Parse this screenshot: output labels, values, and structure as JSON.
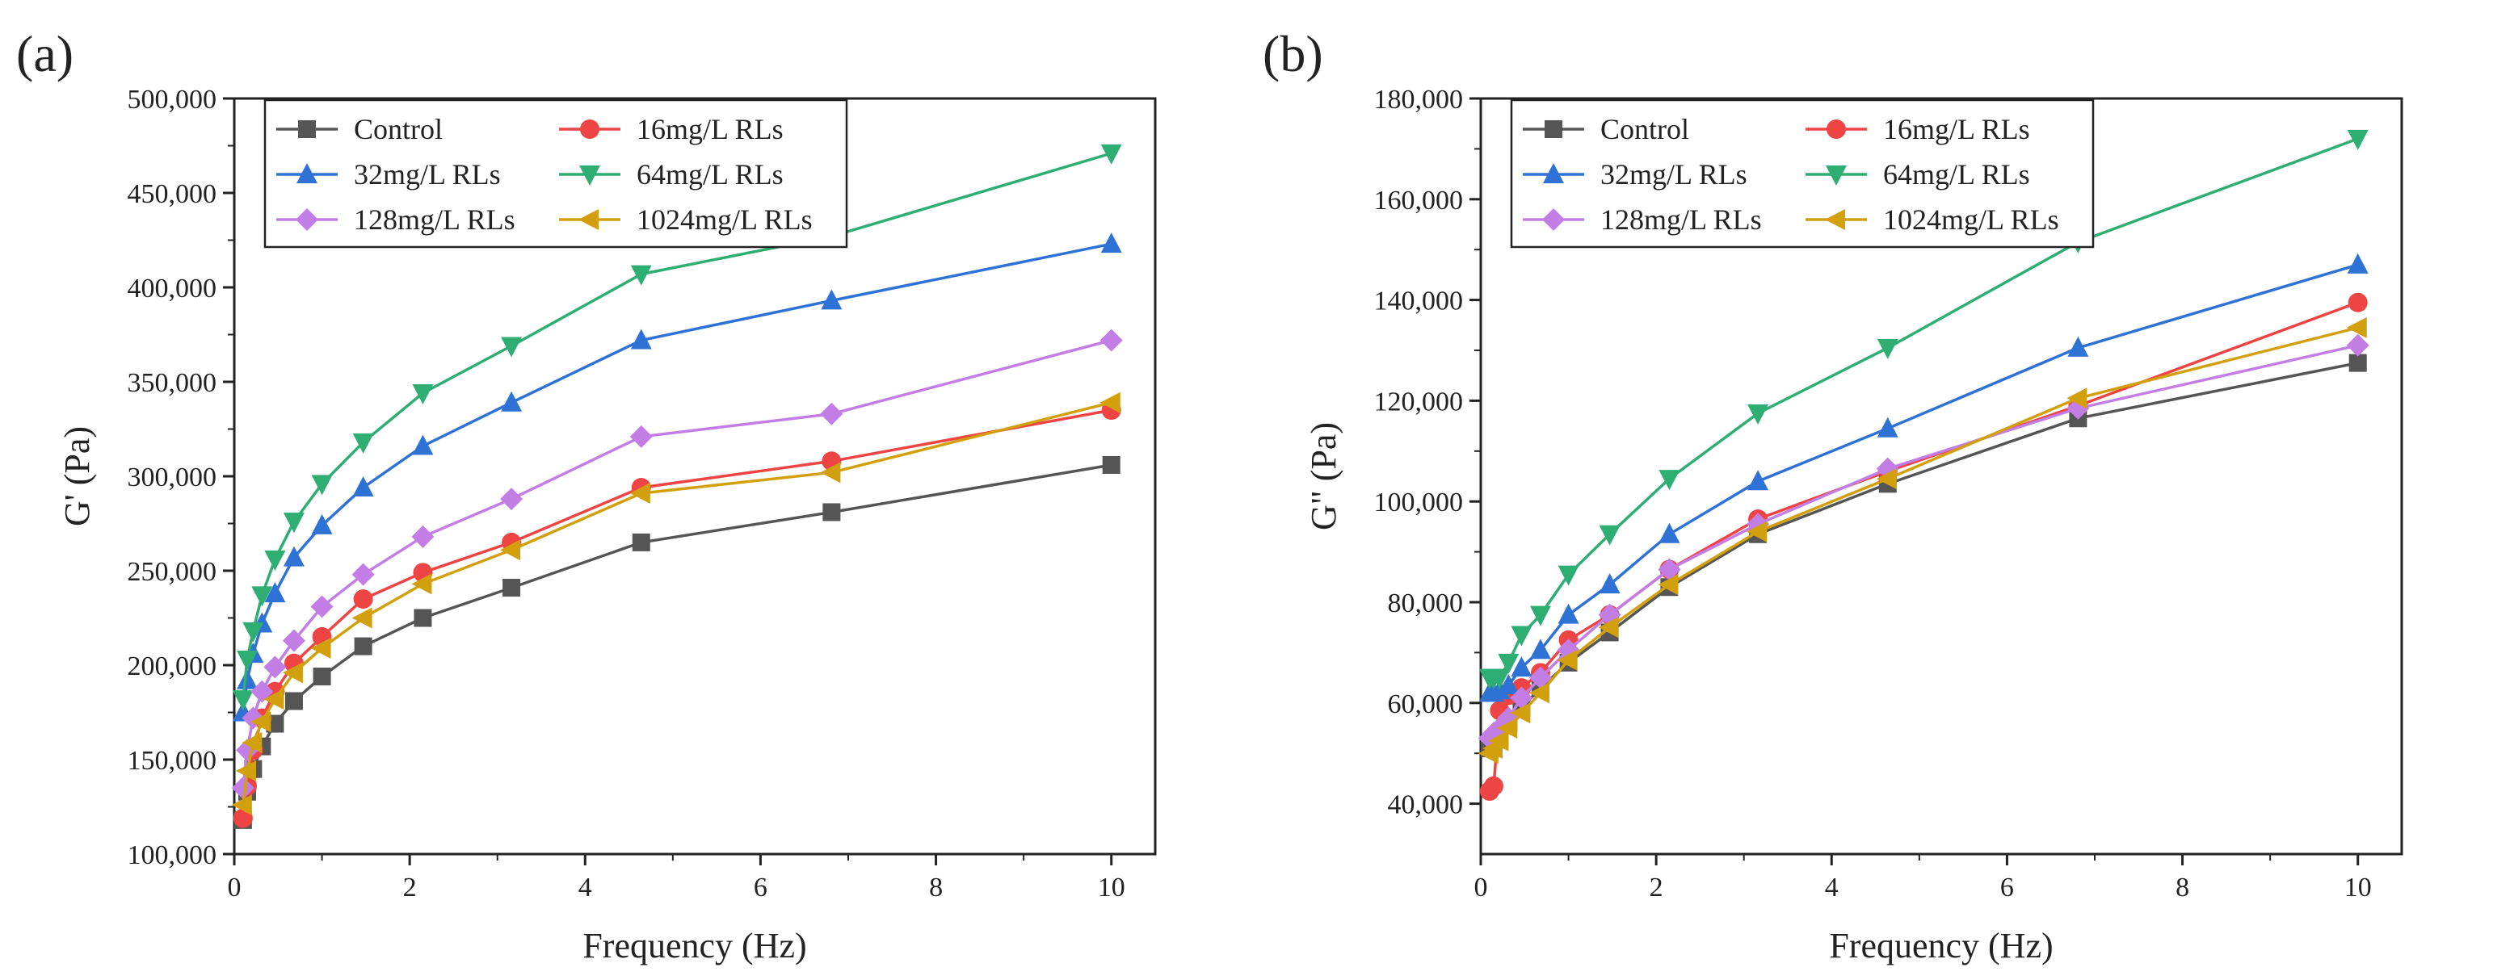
{
  "colors": {
    "axis": "#222222",
    "series": {
      "Control": "#555555",
      "16mg/L RLs": "#ee4444",
      "32mg/L RLs": "#2f72d6",
      "64mg/L RLs": "#2fae74",
      "128mg/L RLs": "#c27ee4",
      "1024mg/L RLs": "#d3a00d"
    }
  },
  "chart_data": [
    {
      "type": "line",
      "panel_label": "(a)",
      "xlabel": "Frequency (Hz)",
      "ylabel": "G' (Pa)",
      "xlim": [
        0,
        10.5
      ],
      "ylim": [
        100000,
        500000
      ],
      "xticks": [
        0,
        2,
        4,
        6,
        8,
        10
      ],
      "yticks": [
        100000,
        150000,
        200000,
        250000,
        300000,
        350000,
        400000,
        450000,
        500000
      ],
      "ytick_labels": [
        "100,000",
        "150,000",
        "200,000",
        "250,000",
        "300,000",
        "350,000",
        "400,000",
        "450,000",
        "500,000"
      ],
      "xtick_labels": [
        "0",
        "2",
        "4",
        "6",
        "8",
        "10"
      ],
      "legend": "top-left",
      "x": [
        0.1,
        0.147,
        0.215,
        0.316,
        0.464,
        0.681,
        1.0,
        1.47,
        2.15,
        3.16,
        4.64,
        6.81,
        10.0
      ],
      "series": [
        {
          "name": "Control",
          "marker": "square",
          "values": [
            118000,
            133000,
            145000,
            157000,
            169000,
            181000,
            194000,
            210000,
            225000,
            241000,
            265000,
            281000,
            306000
          ]
        },
        {
          "name": "16mg/L RLs",
          "marker": "circle",
          "values": [
            119000,
            136000,
            155000,
            172000,
            186000,
            201000,
            215000,
            235000,
            249000,
            265000,
            294000,
            308000,
            335000
          ]
        },
        {
          "name": "32mg/L RLs",
          "marker": "triangle-up",
          "values": [
            175000,
            192000,
            206000,
            222000,
            238000,
            257000,
            274000,
            294000,
            316000,
            339000,
            372000,
            393000,
            423000
          ]
        },
        {
          "name": "64mg/L RLs",
          "marker": "triangle-down",
          "values": [
            182000,
            203000,
            218000,
            237000,
            256000,
            276000,
            296000,
            318000,
            344000,
            369000,
            407000,
            427000,
            471000
          ]
        },
        {
          "name": "128mg/L RLs",
          "marker": "diamond",
          "values": [
            135000,
            155000,
            172000,
            186000,
            199000,
            213000,
            231000,
            248000,
            268000,
            288000,
            321000,
            333000,
            372000
          ]
        },
        {
          "name": "1024mg/L RLs",
          "marker": "triangle-left",
          "values": [
            126000,
            144000,
            159000,
            170000,
            182000,
            196000,
            209000,
            225000,
            243000,
            261000,
            291000,
            302000,
            339000
          ]
        }
      ]
    },
    {
      "type": "line",
      "panel_label": "(b)",
      "xlabel": "Frequency (Hz)",
      "ylabel": "G\" (Pa)",
      "xlim": [
        0,
        10.5
      ],
      "ylim": [
        30000,
        180000
      ],
      "xticks": [
        0,
        2,
        4,
        6,
        8,
        10
      ],
      "yticks": [
        40000,
        60000,
        80000,
        100000,
        120000,
        140000,
        160000,
        180000
      ],
      "ytick_labels": [
        "40,000",
        "60,000",
        "80,000",
        "100,000",
        "120,000",
        "140,000",
        "160,000",
        "180,000"
      ],
      "xtick_labels": [
        "0",
        "2",
        "4",
        "6",
        "8",
        "10"
      ],
      "legend": "top-left",
      "x": [
        0.1,
        0.147,
        0.215,
        0.316,
        0.464,
        0.681,
        1.0,
        1.47,
        2.15,
        3.16,
        4.64,
        6.81,
        10.0
      ],
      "series": [
        {
          "name": "Control",
          "marker": "square",
          "values": [
            51000,
            52000,
            53000,
            56000,
            59000,
            63000,
            68000,
            74000,
            83000,
            93500,
            103500,
            116500,
            127500
          ]
        },
        {
          "name": "16mg/L RLs",
          "marker": "circle",
          "values": [
            42500,
            43500,
            58500,
            61500,
            63000,
            66000,
            72500,
            77500,
            86500,
            96500,
            106000,
            119000,
            139500
          ]
        },
        {
          "name": "32mg/L RLs",
          "marker": "triangle-up",
          "values": [
            62000,
            62000,
            62500,
            63500,
            67000,
            70500,
            77500,
            83500,
            93500,
            104000,
            114500,
            130500,
            147000
          ]
        },
        {
          "name": "64mg/L RLs",
          "marker": "triangle-down",
          "values": [
            65000,
            65000,
            65000,
            68000,
            73500,
            77500,
            85500,
            93500,
            104500,
            117500,
            130500,
            151500,
            172000
          ]
        },
        {
          "name": "128mg/L RLs",
          "marker": "diamond",
          "values": [
            53000,
            54000,
            55000,
            57000,
            61000,
            65000,
            70500,
            77500,
            86500,
            95500,
            106500,
            118500,
            131000
          ]
        },
        {
          "name": "1024mg/L RLs",
          "marker": "triangle-left",
          "values": [
            50000,
            51000,
            52500,
            55000,
            58000,
            62000,
            68500,
            75000,
            83500,
            94000,
            104500,
            120500,
            134500
          ]
        }
      ]
    }
  ]
}
